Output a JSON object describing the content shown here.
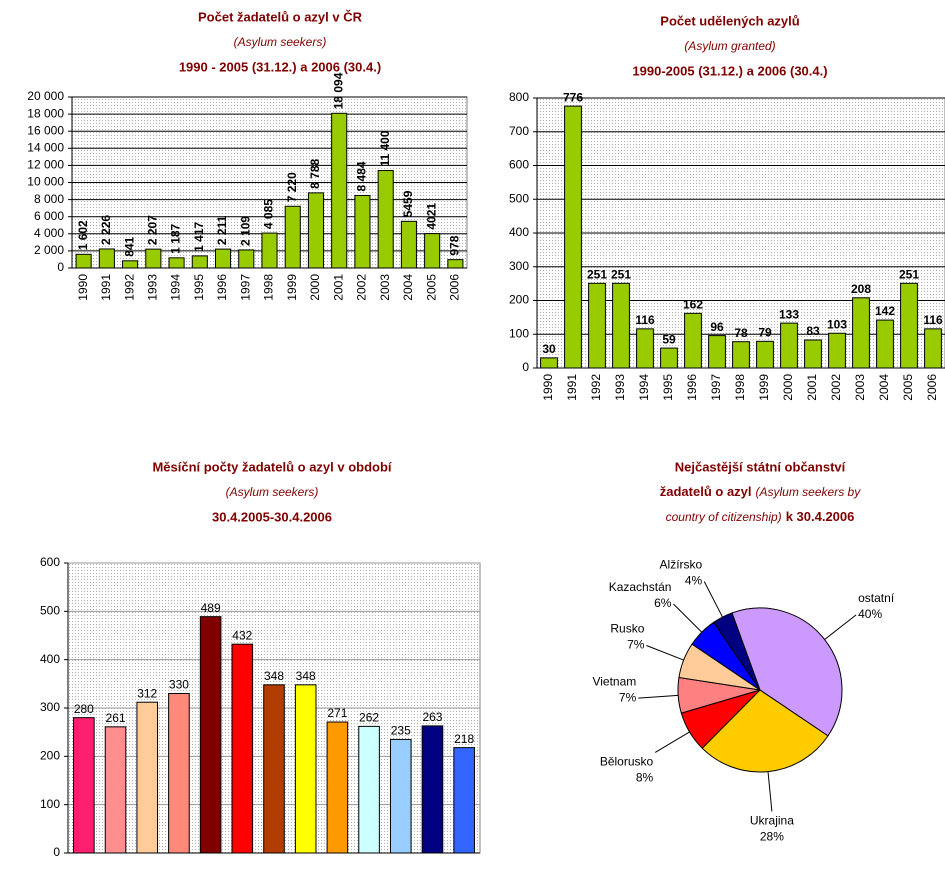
{
  "chart_data": [
    {
      "type": "bar",
      "title": "Počet žadatelů o azyl v ČR",
      "subtitle": "(Asylum seekers)",
      "period": "1990 - 2005 (31.12.) a 2006 (30.4.)",
      "categories": [
        "1990",
        "1991",
        "1992",
        "1993",
        "1994",
        "1995",
        "1996",
        "1997",
        "1998",
        "1999",
        "2000",
        "2001",
        "2002",
        "2003",
        "2004",
        "2005",
        "2006"
      ],
      "values": [
        1602,
        2226,
        841,
        2207,
        1187,
        1417,
        2211,
        2109,
        4085,
        7220,
        8788,
        18094,
        8484,
        11400,
        5459,
        4021,
        978
      ],
      "value_labels": [
        "1 602",
        "2 226",
        "841",
        "2 207",
        "1 187",
        "1 417",
        "2 211",
        "2 109",
        "4 085",
        "7 220",
        "8 788",
        "18 094",
        "8 484",
        "11 400",
        "5459",
        "4021",
        "978"
      ],
      "color": "#99cc00",
      "ylim": [
        0,
        20000
      ],
      "yticks": [
        0,
        {
          "value": 2000,
          "label": "2 000"
        },
        {
          "value": 4000,
          "label": "4 000"
        },
        {
          "value": 6000,
          "label": "6 000"
        },
        {
          "value": 8000,
          "label": "8 000"
        },
        {
          "value": 10000,
          "label": "10 000"
        },
        {
          "value": 12000,
          "label": "12 000"
        },
        {
          "value": 14000,
          "label": "14 000"
        },
        {
          "value": 16000,
          "label": "16 000"
        },
        {
          "value": 18000,
          "label": "18 000"
        },
        {
          "value": 20000,
          "label": "20 000"
        }
      ],
      "grid": true
    },
    {
      "type": "bar",
      "title": "Počet udělených azylů",
      "subtitle": "(Asylum granted)",
      "period": "1990-2005 (31.12.) a 2006 (30.4.)",
      "categories": [
        "1990",
        "1991",
        "1992",
        "1993",
        "1994",
        "1995",
        "1996",
        "1997",
        "1998",
        "1999",
        "2000",
        "2001",
        "2002",
        "2003",
        "2004",
        "2005",
        "2006"
      ],
      "values": [
        30,
        776,
        251,
        251,
        116,
        59,
        162,
        96,
        78,
        79,
        133,
        83,
        103,
        208,
        142,
        251,
        116
      ],
      "color": "#99cc00",
      "ylim": [
        0,
        800
      ],
      "yticks": [
        0,
        100,
        200,
        300,
        400,
        500,
        600,
        700,
        800
      ],
      "grid": true
    },
    {
      "type": "bar",
      "title": "Měsíční počty žadatelů o azyl v období",
      "subtitle": "(Asylum seekers)",
      "period": "30.4.2005-30.4.2006",
      "categories": [
        null,
        null,
        null,
        null,
        null,
        null,
        null,
        null,
        null,
        null,
        null,
        null,
        null
      ],
      "values": [
        280,
        261,
        312,
        330,
        489,
        432,
        348,
        348,
        271,
        262,
        235,
        263,
        218
      ],
      "colors": [
        "#ff1f6e",
        "#ff8f8f",
        "#ffcc99",
        "#ff8a7a",
        "#800000",
        "#ff0000",
        "#b33c00",
        "#ffff00",
        "#ff9900",
        "#ccffff",
        "#99ccff",
        "#000080",
        "#3366ff"
      ],
      "ylim": [
        0,
        600
      ],
      "yticks": [
        0,
        100,
        200,
        300,
        400,
        500,
        600
      ],
      "grid": true
    },
    {
      "type": "pie",
      "title": "Nejčastější státní občanství",
      "title_2": "žadatelů o azyl",
      "subtitle": [
        "(Asylum seekers by",
        "country of citizenship)"
      ],
      "date": "k 30.4.2006",
      "categories": [
        "ostatní",
        "Ukrajina",
        "Bělorusko",
        "Vietnam",
        "Rusko",
        "Kazachstán",
        "Alžírsko"
      ],
      "values": [
        40,
        28,
        8,
        7,
        7,
        6,
        4
      ],
      "value_labels": [
        "40%",
        "28%",
        "8%",
        "7%",
        "7%",
        "6%",
        "4%"
      ],
      "colors": [
        "#cc99ff",
        "#ffcc00",
        "#ff0000",
        "#ff8080",
        "#ffcc99",
        "#0000ff",
        "#000080"
      ]
    }
  ]
}
